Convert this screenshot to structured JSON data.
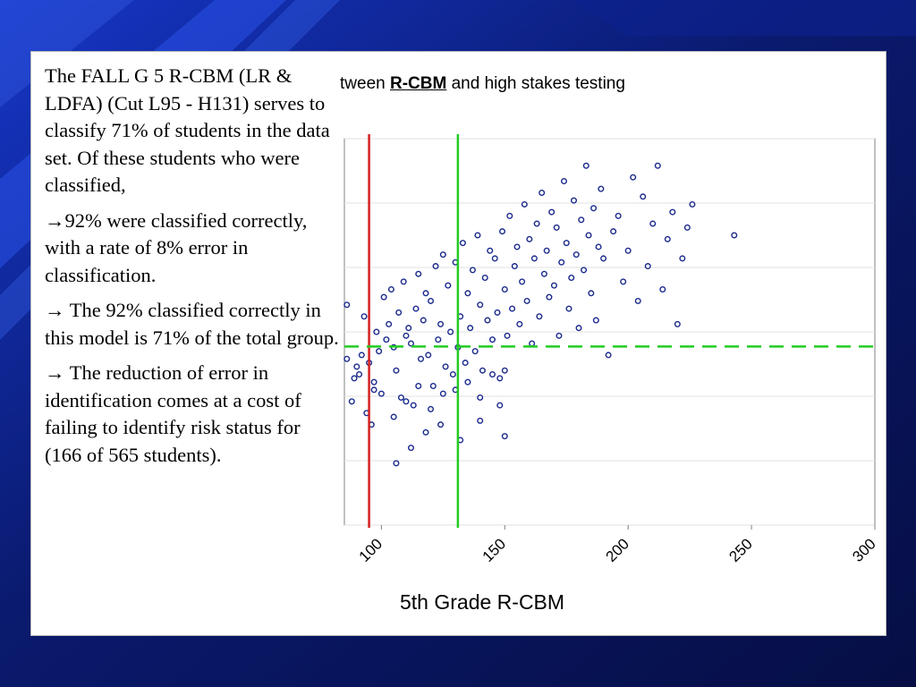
{
  "colors": {
    "background_dark": "#0a1a6e",
    "background_accent": "#1e48e0",
    "point_stroke": "#1a2a8c",
    "red_cut": "#d42020",
    "green_cut": "#22cc22"
  },
  "panel": {
    "paragraphs": [
      "The FALL G 5 R-CBM (LR & LDFA) (Cut L95 - H131) serves to classify 71% of students in the data set. Of these students who were classified,",
      "→92% were classified correctly, with a rate of 8% error in classification.",
      "→ The 92% classified correctly in this model is 71% of the total group.",
      "→ The reduction of error in identification comes at a cost of failing to identify risk status for (166 of 565 students)."
    ]
  },
  "chart_title": {
    "prefix": "tween ",
    "highlight": "R-CBM",
    "suffix": " and high stakes testing"
  },
  "chart_data": {
    "type": "scatter",
    "xlabel": "5th Grade R-CBM",
    "xlim": [
      85,
      300
    ],
    "ylim": [
      0,
      10
    ],
    "x_ticks": [
      {
        "value": 100,
        "label": "100"
      },
      {
        "value": 150,
        "label": "150"
      },
      {
        "value": 200,
        "label": "200"
      },
      {
        "value": 250,
        "label": "250"
      },
      {
        "value": 300,
        "label": "300"
      }
    ],
    "y_gridlines": [
      0,
      1.667,
      3.333,
      5,
      6.667,
      8.333,
      10
    ],
    "cut_lines": [
      {
        "name": "low-cut",
        "axis": "x",
        "value": 95,
        "color": "#d42020",
        "style": "solid"
      },
      {
        "name": "high-cut",
        "axis": "x",
        "value": 131,
        "color": "#22cc22",
        "style": "solid"
      },
      {
        "name": "score-cut",
        "axis": "y",
        "value": 4.62,
        "color": "#22cc22",
        "style": "dashed"
      }
    ],
    "points": [
      [
        86,
        5.7
      ],
      [
        86,
        4.3
      ],
      [
        88,
        3.2
      ],
      [
        89,
        3.8
      ],
      [
        90,
        4.1
      ],
      [
        91,
        3.9
      ],
      [
        92,
        4.4
      ],
      [
        93,
        5.4
      ],
      [
        94,
        2.9
      ],
      [
        95,
        4.2
      ],
      [
        96,
        2.6
      ],
      [
        97,
        3.5
      ],
      [
        97,
        3.7
      ],
      [
        98,
        5.0
      ],
      [
        99,
        4.5
      ],
      [
        100,
        3.4
      ],
      [
        101,
        5.9
      ],
      [
        102,
        4.8
      ],
      [
        103,
        5.2
      ],
      [
        104,
        6.1
      ],
      [
        105,
        4.6
      ],
      [
        106,
        4.0
      ],
      [
        107,
        5.5
      ],
      [
        108,
        3.3
      ],
      [
        109,
        6.3
      ],
      [
        110,
        4.9
      ],
      [
        111,
        5.1
      ],
      [
        112,
        4.7
      ],
      [
        113,
        3.1
      ],
      [
        114,
        5.6
      ],
      [
        115,
        6.5
      ],
      [
        116,
        4.3
      ],
      [
        117,
        5.3
      ],
      [
        118,
        6.0
      ],
      [
        119,
        4.4
      ],
      [
        120,
        5.8
      ],
      [
        121,
        3.6
      ],
      [
        122,
        6.7
      ],
      [
        123,
        4.8
      ],
      [
        124,
        5.2
      ],
      [
        125,
        7.0
      ],
      [
        126,
        4.1
      ],
      [
        127,
        6.2
      ],
      [
        128,
        5.0
      ],
      [
        129,
        3.9
      ],
      [
        130,
        6.8
      ],
      [
        131,
        4.6
      ],
      [
        132,
        5.4
      ],
      [
        133,
        7.3
      ],
      [
        134,
        4.2
      ],
      [
        135,
        6.0
      ],
      [
        136,
        5.1
      ],
      [
        137,
        6.6
      ],
      [
        138,
        4.5
      ],
      [
        139,
        7.5
      ],
      [
        140,
        5.7
      ],
      [
        141,
        4.0
      ],
      [
        142,
        6.4
      ],
      [
        143,
        5.3
      ],
      [
        144,
        7.1
      ],
      [
        145,
        4.8
      ],
      [
        146,
        6.9
      ],
      [
        147,
        5.5
      ],
      [
        148,
        3.8
      ],
      [
        149,
        7.6
      ],
      [
        150,
        6.1
      ],
      [
        151,
        4.9
      ],
      [
        152,
        8.0
      ],
      [
        153,
        5.6
      ],
      [
        154,
        6.7
      ],
      [
        155,
        7.2
      ],
      [
        156,
        5.2
      ],
      [
        157,
        6.3
      ],
      [
        158,
        8.3
      ],
      [
        159,
        5.8
      ],
      [
        160,
        7.4
      ],
      [
        161,
        4.7
      ],
      [
        162,
        6.9
      ],
      [
        163,
        7.8
      ],
      [
        164,
        5.4
      ],
      [
        165,
        8.6
      ],
      [
        166,
        6.5
      ],
      [
        167,
        7.1
      ],
      [
        168,
        5.9
      ],
      [
        169,
        8.1
      ],
      [
        170,
        6.2
      ],
      [
        171,
        7.7
      ],
      [
        172,
        4.9
      ],
      [
        173,
        6.8
      ],
      [
        174,
        8.9
      ],
      [
        175,
        7.3
      ],
      [
        176,
        5.6
      ],
      [
        177,
        6.4
      ],
      [
        178,
        8.4
      ],
      [
        179,
        7.0
      ],
      [
        180,
        5.1
      ],
      [
        181,
        7.9
      ],
      [
        182,
        6.6
      ],
      [
        183,
        9.3
      ],
      [
        184,
        7.5
      ],
      [
        185,
        6.0
      ],
      [
        186,
        8.2
      ],
      [
        187,
        5.3
      ],
      [
        188,
        7.2
      ],
      [
        189,
        8.7
      ],
      [
        190,
        6.9
      ],
      [
        192,
        4.4
      ],
      [
        194,
        7.6
      ],
      [
        196,
        8.0
      ],
      [
        198,
        6.3
      ],
      [
        200,
        7.1
      ],
      [
        202,
        9.0
      ],
      [
        204,
        5.8
      ],
      [
        206,
        8.5
      ],
      [
        208,
        6.7
      ],
      [
        210,
        7.8
      ],
      [
        212,
        9.3
      ],
      [
        214,
        6.1
      ],
      [
        216,
        7.4
      ],
      [
        218,
        8.1
      ],
      [
        220,
        5.2
      ],
      [
        222,
        6.9
      ],
      [
        224,
        7.7
      ],
      [
        226,
        8.3
      ],
      [
        243,
        7.5
      ],
      [
        105,
        2.8
      ],
      [
        110,
        3.2
      ],
      [
        115,
        3.6
      ],
      [
        120,
        3.0
      ],
      [
        125,
        3.4
      ],
      [
        130,
        3.5
      ],
      [
        135,
        3.7
      ],
      [
        140,
        3.3
      ],
      [
        145,
        3.9
      ],
      [
        150,
        4.0
      ],
      [
        106,
        1.6
      ],
      [
        112,
        2.0
      ],
      [
        118,
        2.4
      ],
      [
        124,
        2.6
      ],
      [
        132,
        2.2
      ],
      [
        140,
        2.7
      ],
      [
        148,
        3.1
      ],
      [
        150,
        2.3
      ]
    ]
  }
}
